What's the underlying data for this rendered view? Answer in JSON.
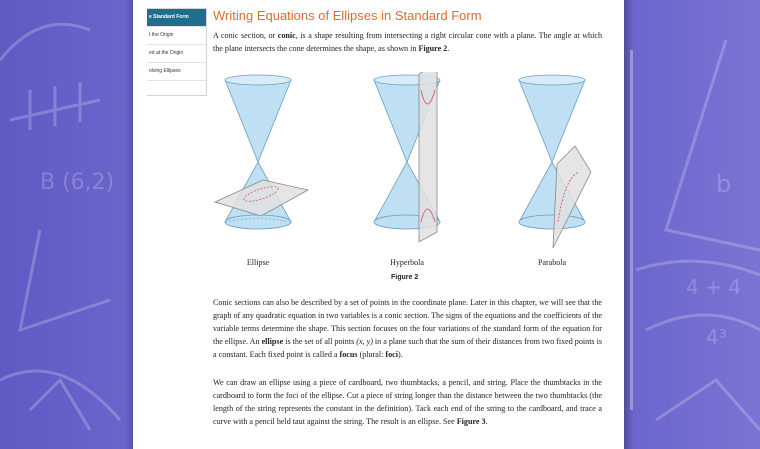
{
  "toc": {
    "items": [
      {
        "label": "e Standard Form",
        "active": true
      },
      {
        "label": "t the Origin",
        "active": false
      },
      {
        "label": "ed at the Origin",
        "active": false
      },
      {
        "label": "olving Ellipses",
        "active": false
      }
    ]
  },
  "section_title": "Writing Equations of Ellipses in Standard Form",
  "intro": {
    "p1": "A conic section, or ",
    "conic": "conic",
    "p2": ", is a shape resulting from intersecting a right circular cone with a plane. The angle at which the plane intersects the cone determines the shape, as shown in ",
    "fig_ref": "Figure 2",
    "p3": "."
  },
  "figure": {
    "captions": [
      "Ellipse",
      "Hyperbola",
      "Parabola"
    ],
    "label": "Figure 2"
  },
  "para2": {
    "p1": "Conic sections can also be described by a set of points in the coordinate plane. Later in this chapter, we will see that the graph of any quadratic equation in two variables is a conic section. The signs of the equations and the coefficients of the variable terms determine the shape. This section focuses on the four variations of the standard form of the equation for the ellipse. An ",
    "ellipse": "ellipse",
    "p2": " is the set of all points ",
    "point": "(x, y)",
    "p3": " in a plane such that the sum of their distances from two fixed points is a constant. Each fixed point is called a ",
    "focus": "focus",
    "p4": " (plural: ",
    "foci": "foci",
    "p5": ")."
  },
  "para3": {
    "p1": "We can draw an ellipse using a piece of cardboard, two thumbtacks, a pencil, and string. Place the thumbtacks in the cardboard to form the foci of the ellipse. Cut a piece of string longer than the distance between the two thumbtacks (the length of the string represents the constant in the definition). Tack each end of the string to the cardboard, and trace a curve with a pencil held taut against the string. The result is an ellipse. See ",
    "fig_ref": "Figure 3",
    "p2": "."
  },
  "colors": {
    "background": "#6a64c8",
    "title": "#e06a2c",
    "toc_active": "#1e6e8c",
    "cone": "#bfe0f3",
    "curve": "#e0607a"
  },
  "background_chalk": [
    "B (6,2)",
    "4 + 4",
    "4³",
    "b"
  ]
}
